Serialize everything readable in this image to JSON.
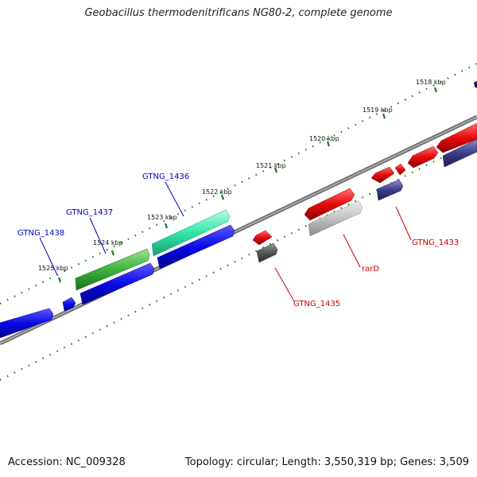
{
  "title": "Geobacillus thermodenitrificans NG80-2, complete genome",
  "footer": {
    "accession": "Accession: NC_009328",
    "summary": "Topology: circular; Length: 3,550,319 bp; Genes: 3,509"
  },
  "colors": {
    "backbone": "#8a8a8a",
    "tick": "#1f7a1f",
    "forward_label": "#0000cc",
    "reverse_label": "#cc0000",
    "blue": "#0a0ae6",
    "green": "#3cb43c",
    "teal": "#33e6a8",
    "red": "#e60a0a",
    "gray": "#555555",
    "light_gray": "#c0c0c0",
    "navy": "#3c3c8c",
    "dark_navy": "#14146e"
  },
  "scale": {
    "unit": "kbp",
    "labels": [
      "1518 kbp",
      "1519 kbp",
      "1520 kbp",
      "1521 kbp",
      "1522 kbp",
      "1523 kbp",
      "1524 kbp",
      "1525 kbp"
    ]
  },
  "genes": {
    "forward": [
      {
        "label": "GTNG_1438",
        "color": "blue"
      },
      {
        "label": "GTNG_1437",
        "color": "green"
      },
      {
        "label": "GTNG_1436",
        "color": "teal"
      }
    ],
    "reverse": [
      {
        "label": "GTNG_1435",
        "color": "gray"
      },
      {
        "label": "rarD",
        "color": "light_gray"
      },
      {
        "label": "GTNG_1433",
        "color": "navy"
      }
    ]
  }
}
